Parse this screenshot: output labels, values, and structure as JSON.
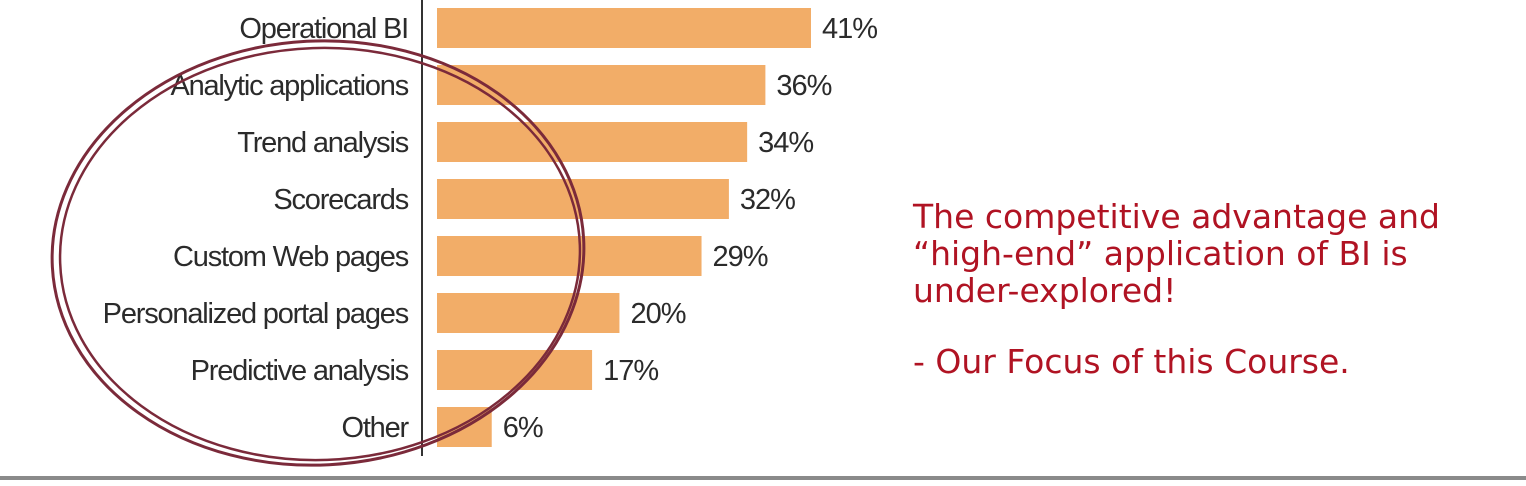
{
  "chart_data": {
    "type": "bar",
    "orientation": "horizontal",
    "categories": [
      "Operational BI",
      "Analytic applications",
      "Trend analysis",
      "Scorecards",
      "Custom Web pages",
      "Personalized portal pages",
      "Predictive analysis",
      "Other"
    ],
    "values": [
      41,
      36,
      34,
      32,
      29,
      20,
      17,
      6
    ],
    "value_labels": [
      "41%",
      "36%",
      "34%",
      "32%",
      "29%",
      "20%",
      "17%",
      "6%"
    ],
    "bar_color": "#f2ad68",
    "xlim": [
      0,
      41
    ],
    "grid": false
  },
  "annotation": {
    "ellipse_color": "#7b2a3a",
    "encircles": [
      "Analytic applications",
      "Trend analysis",
      "Scorecards",
      "Custom Web pages",
      "Personalized portal pages",
      "Predictive analysis",
      "Other"
    ]
  },
  "callout": {
    "line1": "The competitive advantage and",
    "line2": "“high-end” application of BI is",
    "line3": "under-explored!",
    "focus": "- Our Focus of this Course.",
    "color": "#b01323"
  }
}
